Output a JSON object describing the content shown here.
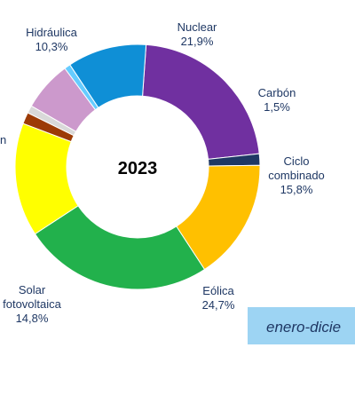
{
  "chart_data": {
    "type": "pie",
    "center_label": "2023",
    "donut": true,
    "slices": [
      {
        "name": "Nuclear",
        "value": 21.9,
        "label": "21,9%",
        "color": "#7030a0"
      },
      {
        "name": "Carbón",
        "value": 1.5,
        "label": "1,5%",
        "color": "#1f3864"
      },
      {
        "name": "Ciclo combinado",
        "value": 15.8,
        "label": "15,8%",
        "color": "#ffc000"
      },
      {
        "name": "Eólica",
        "value": 24.7,
        "label": "24,7%",
        "color": "#22b14c"
      },
      {
        "name": "Solar fotovoltaica",
        "value": 14.8,
        "label": "14,8%",
        "color": "#ffff00"
      },
      {
        "name": "",
        "value": 1.5,
        "label": "",
        "color": "#9c3b06"
      },
      {
        "name": "",
        "value": 1.0,
        "label": "",
        "color": "#d9d9d9"
      },
      {
        "name": "",
        "value": 6.5,
        "label": "",
        "color": "#cc99cc"
      },
      {
        "name": "",
        "value": 0.8,
        "label": "",
        "color": "#66ccff"
      },
      {
        "name": "Hidráulica",
        "value": 10.3,
        "label": "10,3%",
        "color": "#0f8fd6"
      }
    ]
  },
  "labels": {
    "nuclear_name": "Nuclear",
    "nuclear_pct": "21,9%",
    "carbon_name": "Carbón",
    "carbon_pct": "1,5%",
    "ciclo_name_1": "Ciclo",
    "ciclo_name_2": "combinado",
    "ciclo_pct": "15,8%",
    "eolica_name": "Eólica",
    "eolica_pct": "24,7%",
    "solar_name_1": "Solar",
    "solar_name_2": "fotovoltaica",
    "solar_pct": "14,8%",
    "hidraulica_name": "Hidráulica",
    "hidraulica_pct": "10,3%",
    "cut_left": "n"
  },
  "banner": {
    "text": "enero-dicie",
    "color": "#9dd4f3"
  }
}
